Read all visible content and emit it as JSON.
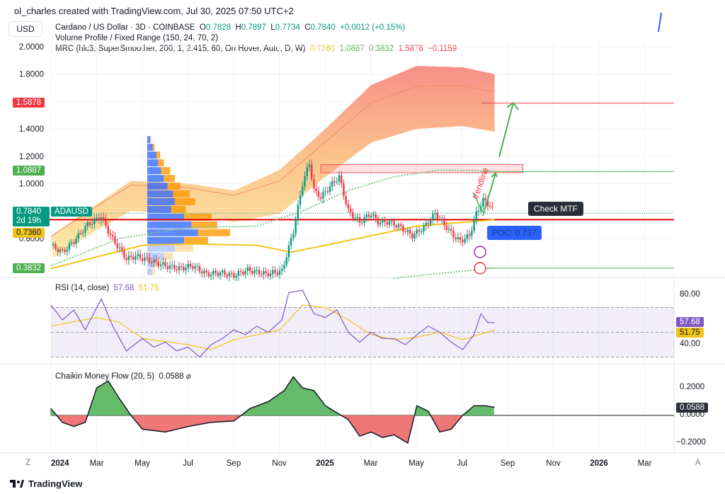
{
  "header": "ol_charles created with TradingView.com, Jul 30, 2025 07:50 UTC+2",
  "currency": "USD",
  "legend": {
    "symbol": "Cardano / US Dollar · 3D · COINBASE",
    "o_label": "O",
    "o": "0.7828",
    "h_label": "H",
    "h": "0.7897",
    "l_label": "L",
    "l": "0.7734",
    "c_label": "C",
    "c": "0.7840",
    "change": "+0.0012 (+0.15%)",
    "vp": "Volume Profile / Fixed Range (150, 24, 70, 2)",
    "mrc": "MRC (hlc3, SuperSmoother, 200, 1, 2.415, 60, On Hover, Auto, D, W)",
    "mrc_vals": [
      "0.7360",
      "1.0887",
      "0.3832",
      "1.5878",
      "−0.1159"
    ]
  },
  "price_tags": {
    "last": "0.7840",
    "countdown": "2d 19h",
    "symbol": "ADAUSD",
    "mean": "0.7360",
    "upper": "1.0887",
    "lower": "0.3832",
    "upper2": "1.5878"
  },
  "annotations": {
    "trendline": "trendline",
    "check_mtf": "Check MTF",
    "poc": "POC: 0.737"
  },
  "rsi": {
    "title": "RSI (14, close)",
    "v1": "57.68",
    "v2": "51.75",
    "ticks": [
      "80.00",
      "40.00"
    ]
  },
  "cmf": {
    "title": "Chaikin Money Flow (20, 5)",
    "value": "0.0588",
    "ticks": [
      "0.2000",
      "0.0000",
      "−0.2000"
    ]
  },
  "corner": {
    "z": "Z",
    "a": "A"
  },
  "footer": "TradingView",
  "colors": {
    "up": "#089981",
    "down": "#f23645",
    "mean": "#f0c419",
    "band": "#4caf50",
    "rsi": "#7e57c2",
    "poc": "#2962ff"
  },
  "chart_data": {
    "type": "candlestick",
    "title": "Cardano / US Dollar · 3D · COINBASE",
    "xlabel": "",
    "ylabel": "USD",
    "ylim": [
      0.3,
      2.0
    ],
    "y_ticks": [
      "2.0000",
      "1.8000",
      "1.4000",
      "1.2000",
      "1.0000",
      "0.6000"
    ],
    "x_ticks": [
      "2024",
      "Mar",
      "May",
      "Jul",
      "Sep",
      "Nov",
      "2025",
      "Mar",
      "May",
      "Jul",
      "Sep",
      "Nov",
      "2026",
      "Mar"
    ],
    "price_path_month_price": [
      [
        0,
        0.55
      ],
      [
        0.5,
        0.5
      ],
      [
        1,
        0.58
      ],
      [
        1.6,
        0.7
      ],
      [
        2.2,
        0.76
      ],
      [
        2.6,
        0.62
      ],
      [
        3.3,
        0.45
      ],
      [
        3.7,
        0.47
      ],
      [
        4.3,
        0.44
      ],
      [
        5,
        0.4
      ],
      [
        5.6,
        0.38
      ],
      [
        6.2,
        0.4
      ],
      [
        6.8,
        0.34
      ],
      [
        7.4,
        0.35
      ],
      [
        8,
        0.33
      ],
      [
        8.6,
        0.37
      ],
      [
        9.4,
        0.34
      ],
      [
        10.1,
        0.36
      ],
      [
        10.6,
        0.65
      ],
      [
        11.0,
        1.0
      ],
      [
        11.3,
        1.15
      ],
      [
        11.5,
        0.95
      ],
      [
        11.8,
        0.9
      ],
      [
        12.2,
        0.98
      ],
      [
        12.6,
        1.05
      ],
      [
        13,
        0.8
      ],
      [
        13.5,
        0.72
      ],
      [
        14,
        0.78
      ],
      [
        14.3,
        0.72
      ],
      [
        14.8,
        0.72
      ],
      [
        15.3,
        0.68
      ],
      [
        15.8,
        0.62
      ],
      [
        16.3,
        0.68
      ],
      [
        16.8,
        0.78
      ],
      [
        17.2,
        0.7
      ],
      [
        17.6,
        0.62
      ],
      [
        17.9,
        0.58
      ],
      [
        18.3,
        0.62
      ],
      [
        18.6,
        0.78
      ],
      [
        18.9,
        0.88
      ],
      [
        19.2,
        0.84
      ],
      [
        19.4,
        0.784
      ]
    ],
    "mrc_mean": [
      [
        0,
        0.38
      ],
      [
        4,
        0.55
      ],
      [
        6,
        0.56
      ],
      [
        9,
        0.55
      ],
      [
        10.5,
        0.5
      ],
      [
        12,
        0.55
      ],
      [
        14,
        0.62
      ],
      [
        16,
        0.69
      ],
      [
        19.4,
        0.736
      ]
    ],
    "mrc_upper_band_outer": [
      [
        0,
        0.62
      ],
      [
        2,
        0.85
      ],
      [
        3.5,
        1.02
      ],
      [
        6,
        1.0
      ],
      [
        8,
        0.95
      ],
      [
        10,
        1.1
      ],
      [
        12,
        1.4
      ],
      [
        14,
        1.72
      ],
      [
        16,
        1.86
      ],
      [
        18,
        1.85
      ],
      [
        19.4,
        1.8
      ]
    ],
    "mrc_upper_band_inner": [
      [
        0,
        0.45
      ],
      [
        2,
        0.66
      ],
      [
        3.5,
        0.8
      ],
      [
        6,
        0.78
      ],
      [
        8,
        0.72
      ],
      [
        10,
        0.78
      ],
      [
        12,
        1.05
      ],
      [
        14,
        1.3
      ],
      [
        16,
        1.4
      ],
      [
        18,
        1.42
      ],
      [
        19.4,
        1.38
      ]
    ],
    "mrc_upper1_dotted": [
      [
        0,
        0.4
      ],
      [
        3,
        0.6
      ],
      [
        6,
        0.68
      ],
      [
        9,
        0.69
      ],
      [
        11,
        0.8
      ],
      [
        13,
        0.95
      ],
      [
        15,
        1.05
      ],
      [
        17,
        1.1
      ],
      [
        19.4,
        1.09
      ]
    ],
    "volume_profile": {
      "up": [
        3,
        6,
        10,
        12,
        15,
        18,
        22,
        28,
        30,
        26,
        40,
        48,
        55,
        40,
        30,
        18,
        8,
        5
      ],
      "down": [
        1,
        2,
        4,
        6,
        10,
        12,
        14,
        18,
        22,
        16,
        30,
        28,
        35,
        26,
        20,
        10,
        5,
        3
      ],
      "price_top": 1.35,
      "price_bottom": 0.33
    },
    "levels": {
      "upper2": 1.5878,
      "upper1": 1.0887,
      "poc": 0.737,
      "lower": 0.3832,
      "last": 0.784
    },
    "resistance_box": [
      1.08,
      1.14
    ],
    "rsi_series": [
      [
        0,
        72
      ],
      [
        0.5,
        60
      ],
      [
        1,
        68
      ],
      [
        1.5,
        52
      ],
      [
        2.2,
        77
      ],
      [
        2.7,
        55
      ],
      [
        3.3,
        35
      ],
      [
        4,
        45
      ],
      [
        4.5,
        38
      ],
      [
        5,
        42
      ],
      [
        5.5,
        35
      ],
      [
        6,
        38
      ],
      [
        6.5,
        30
      ],
      [
        7,
        40
      ],
      [
        7.5,
        45
      ],
      [
        8,
        52
      ],
      [
        8.5,
        48
      ],
      [
        9,
        55
      ],
      [
        9.5,
        50
      ],
      [
        10.1,
        60
      ],
      [
        10.4,
        82
      ],
      [
        11,
        84
      ],
      [
        11.5,
        65
      ],
      [
        12,
        62
      ],
      [
        12.5,
        68
      ],
      [
        13,
        50
      ],
      [
        13.5,
        42
      ],
      [
        14,
        50
      ],
      [
        14.5,
        45
      ],
      [
        15,
        45
      ],
      [
        15.5,
        40
      ],
      [
        16,
        48
      ],
      [
        16.5,
        55
      ],
      [
        17,
        50
      ],
      [
        17.5,
        42
      ],
      [
        18,
        36
      ],
      [
        18.5,
        48
      ],
      [
        18.8,
        65
      ],
      [
        19.1,
        58
      ],
      [
        19.4,
        57.68
      ]
    ],
    "rsi_ma": [
      [
        0,
        55
      ],
      [
        2,
        62
      ],
      [
        3,
        58
      ],
      [
        4,
        45
      ],
      [
        6,
        40
      ],
      [
        7,
        36
      ],
      [
        8,
        44
      ],
      [
        9,
        48
      ],
      [
        10,
        52
      ],
      [
        11,
        72
      ],
      [
        12,
        70
      ],
      [
        13,
        60
      ],
      [
        14,
        48
      ],
      [
        15,
        44
      ],
      [
        16,
        46
      ],
      [
        17,
        50
      ],
      [
        18,
        44
      ],
      [
        19.4,
        51.75
      ]
    ],
    "rsi_ylim": [
      20,
      90
    ],
    "cmf_series": [
      [
        0,
        0.05
      ],
      [
        0.5,
        -0.05
      ],
      [
        1,
        -0.08
      ],
      [
        1.5,
        -0.05
      ],
      [
        2,
        0.2
      ],
      [
        2.5,
        0.25
      ],
      [
        3,
        0.12
      ],
      [
        3.5,
        0.0
      ],
      [
        4,
        -0.1
      ],
      [
        5,
        -0.12
      ],
      [
        6,
        -0.08
      ],
      [
        7,
        -0.05
      ],
      [
        8,
        -0.04
      ],
      [
        8.7,
        0.05
      ],
      [
        9.5,
        0.1
      ],
      [
        10.2,
        0.18
      ],
      [
        10.6,
        0.28
      ],
      [
        11,
        0.2
      ],
      [
        11.5,
        0.18
      ],
      [
        12,
        0.07
      ],
      [
        12.5,
        0.02
      ],
      [
        13,
        -0.03
      ],
      [
        13.5,
        -0.15
      ],
      [
        14,
        -0.12
      ],
      [
        14.5,
        -0.16
      ],
      [
        15,
        -0.14
      ],
      [
        15.6,
        -0.2
      ],
      [
        16,
        0.07
      ],
      [
        16.5,
        0.03
      ],
      [
        17,
        -0.12
      ],
      [
        17.5,
        -0.1
      ],
      [
        18,
        0.0
      ],
      [
        18.5,
        0.07
      ],
      [
        19,
        0.07
      ],
      [
        19.4,
        0.0588
      ]
    ],
    "cmf_ylim": [
      -0.25,
      0.3
    ]
  }
}
